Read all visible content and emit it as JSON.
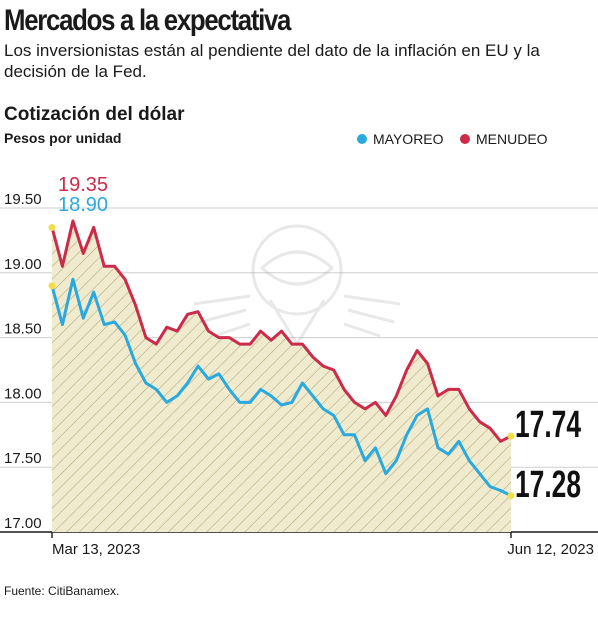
{
  "header": {
    "title": "Mercados a la expectativa",
    "subtitle": "Los inversionistas están al pendiente del dato de la inflación en EU y la decisión de la Fed."
  },
  "chart_title": "Cotización del dólar",
  "y_unit": "Pesos por unidad",
  "source": "Fuente: CitiBanamex.",
  "colors": {
    "mayoreo": "#2aa9df",
    "menudeo": "#cc2b4a",
    "fill": "#f0ebcf",
    "hatch": "#b3ac7c",
    "endpoint": "#f5dd4a",
    "grid": "#cfcfcf"
  },
  "chart_data": {
    "type": "line",
    "ylim": [
      17.0,
      19.5
    ],
    "yticks": [
      "17.00",
      "17.50",
      "18.00",
      "18.50",
      "19.00",
      "19.50"
    ],
    "x_start_label": "Mar 13, 2023",
    "x_end_label": "Jun 12, 2023",
    "series": [
      {
        "name": "MAYOREO",
        "key": "mayoreo",
        "start_label": "18.90",
        "end_label": "17.28",
        "values": [
          18.9,
          18.6,
          18.95,
          18.65,
          18.85,
          18.6,
          18.62,
          18.52,
          18.3,
          18.15,
          18.1,
          18.0,
          18.05,
          18.15,
          18.28,
          18.18,
          18.22,
          18.1,
          18.0,
          18.0,
          18.1,
          18.05,
          17.98,
          18.0,
          18.15,
          18.05,
          17.95,
          17.9,
          17.75,
          17.75,
          17.55,
          17.65,
          17.45,
          17.55,
          17.75,
          17.9,
          17.95,
          17.65,
          17.6,
          17.7,
          17.55,
          17.45,
          17.35,
          17.32,
          17.28
        ]
      },
      {
        "name": "MENUDEO",
        "key": "menudeo",
        "start_label": "19.35",
        "end_label": "17.74",
        "values": [
          19.35,
          19.05,
          19.4,
          19.15,
          19.35,
          19.05,
          19.05,
          18.95,
          18.75,
          18.5,
          18.45,
          18.58,
          18.55,
          18.68,
          18.7,
          18.55,
          18.5,
          18.5,
          18.45,
          18.45,
          18.55,
          18.48,
          18.55,
          18.45,
          18.45,
          18.35,
          18.28,
          18.25,
          18.1,
          18.0,
          17.95,
          18.0,
          17.9,
          18.05,
          18.25,
          18.4,
          18.3,
          18.05,
          18.1,
          18.1,
          17.95,
          17.85,
          17.8,
          17.7,
          17.74
        ]
      }
    ]
  }
}
